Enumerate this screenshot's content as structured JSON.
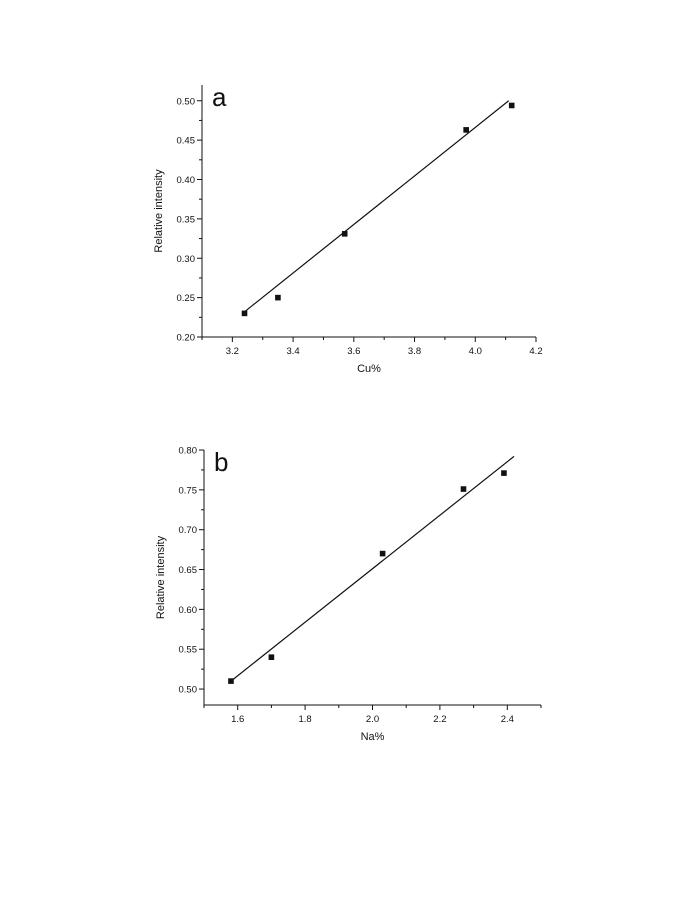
{
  "chart_data": [
    {
      "type": "scatter",
      "panel_label": "a",
      "xlabel": "Cu%",
      "ylabel": "Relative intensity",
      "xlim": [
        3.1,
        4.2
      ],
      "ylim": [
        0.2,
        0.52
      ],
      "xticks": [
        3.2,
        3.4,
        3.6,
        3.8,
        4.0,
        4.2
      ],
      "yticks": [
        0.2,
        0.25,
        0.3,
        0.35,
        0.4,
        0.45,
        0.5
      ],
      "xtick_labels": [
        "3.2",
        "3.4",
        "3.6",
        "3.8",
        "4.0",
        "4.2"
      ],
      "ytick_labels": [
        "0.20",
        "0.25",
        "0.30",
        "0.35",
        "0.40",
        "0.45",
        "0.50"
      ],
      "x": [
        3.24,
        3.35,
        3.57,
        3.97,
        4.12
      ],
      "y": [
        0.23,
        0.25,
        0.331,
        0.463,
        0.494
      ],
      "fit_line": {
        "x": [
          3.24,
          4.11
        ],
        "y": [
          0.232,
          0.5
        ]
      },
      "grid": false,
      "legend": "none"
    },
    {
      "type": "scatter",
      "panel_label": "b",
      "xlabel": "Na%",
      "ylabel": "Relative intensity",
      "xlim": [
        1.5,
        2.5
      ],
      "ylim": [
        0.48,
        0.8
      ],
      "xticks": [
        1.6,
        1.8,
        2.0,
        2.2,
        2.4
      ],
      "yticks": [
        0.5,
        0.55,
        0.6,
        0.65,
        0.7,
        0.75,
        0.8
      ],
      "xtick_labels": [
        "1.6",
        "1.8",
        "2.0",
        "2.2",
        "2.4"
      ],
      "ytick_labels": [
        "0.50",
        "0.55",
        "0.60",
        "0.65",
        "0.70",
        "0.75",
        "0.80"
      ],
      "x": [
        1.58,
        1.7,
        2.03,
        2.27,
        2.39
      ],
      "y": [
        0.51,
        0.54,
        0.67,
        0.751,
        0.771
      ],
      "fit_line": {
        "x": [
          1.58,
          2.42
        ],
        "y": [
          0.51,
          0.792
        ]
      },
      "grid": false,
      "legend": "none"
    }
  ]
}
